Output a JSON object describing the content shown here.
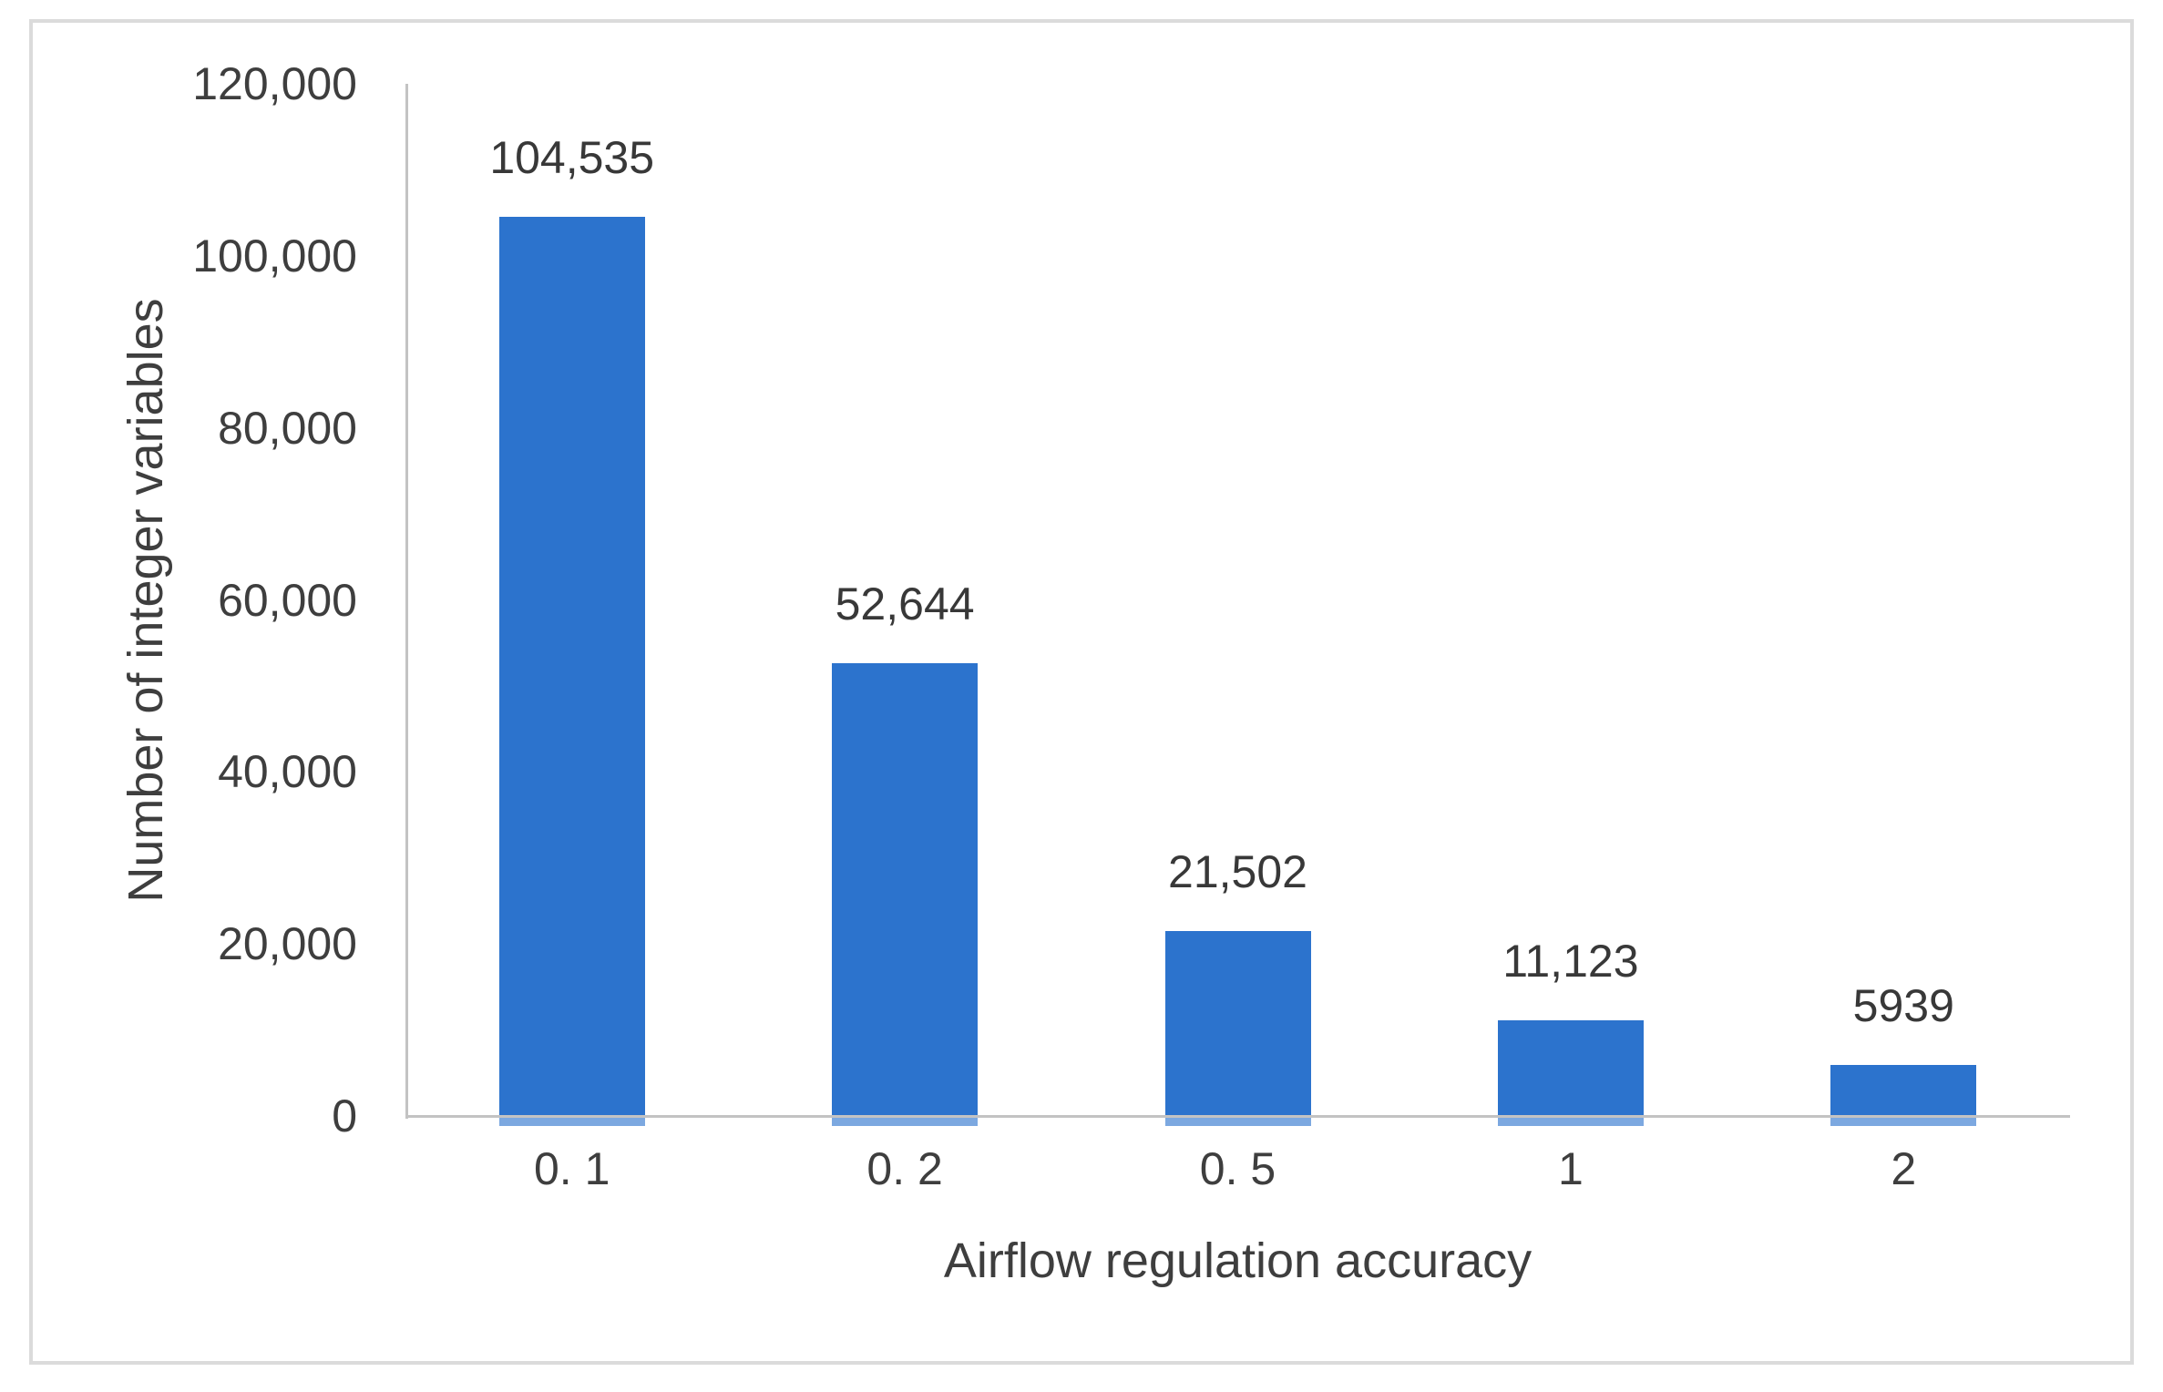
{
  "chart_data": {
    "type": "bar",
    "title": "",
    "categories": [
      "0. 1",
      "0. 2",
      "0. 5",
      "1",
      "2"
    ],
    "values": [
      104535,
      52644,
      21502,
      11123,
      5939
    ],
    "value_labels": [
      "104,535",
      "52,644",
      "21,502",
      "11,123",
      "5939"
    ],
    "xlabel": "Airflow regulation accuracy",
    "ylabel": "Number of integer variables",
    "ylim": [
      0,
      120000
    ],
    "yticks": [
      {
        "value": 0,
        "label": "0"
      },
      {
        "value": 20000,
        "label": "20,000"
      },
      {
        "value": 40000,
        "label": "40,000"
      },
      {
        "value": 60000,
        "label": "60,000"
      },
      {
        "value": 80000,
        "label": "80,000"
      },
      {
        "value": 100000,
        "label": "100,000"
      },
      {
        "value": 120000,
        "label": "120,000"
      }
    ],
    "grid": false,
    "legend": "none"
  },
  "colors": {
    "bar": "#2C73CD",
    "axis_line": "#C3C3C3",
    "text": "#3E3E3E",
    "frame_border": "#DBDBDB",
    "background": "#FFFFFF"
  }
}
